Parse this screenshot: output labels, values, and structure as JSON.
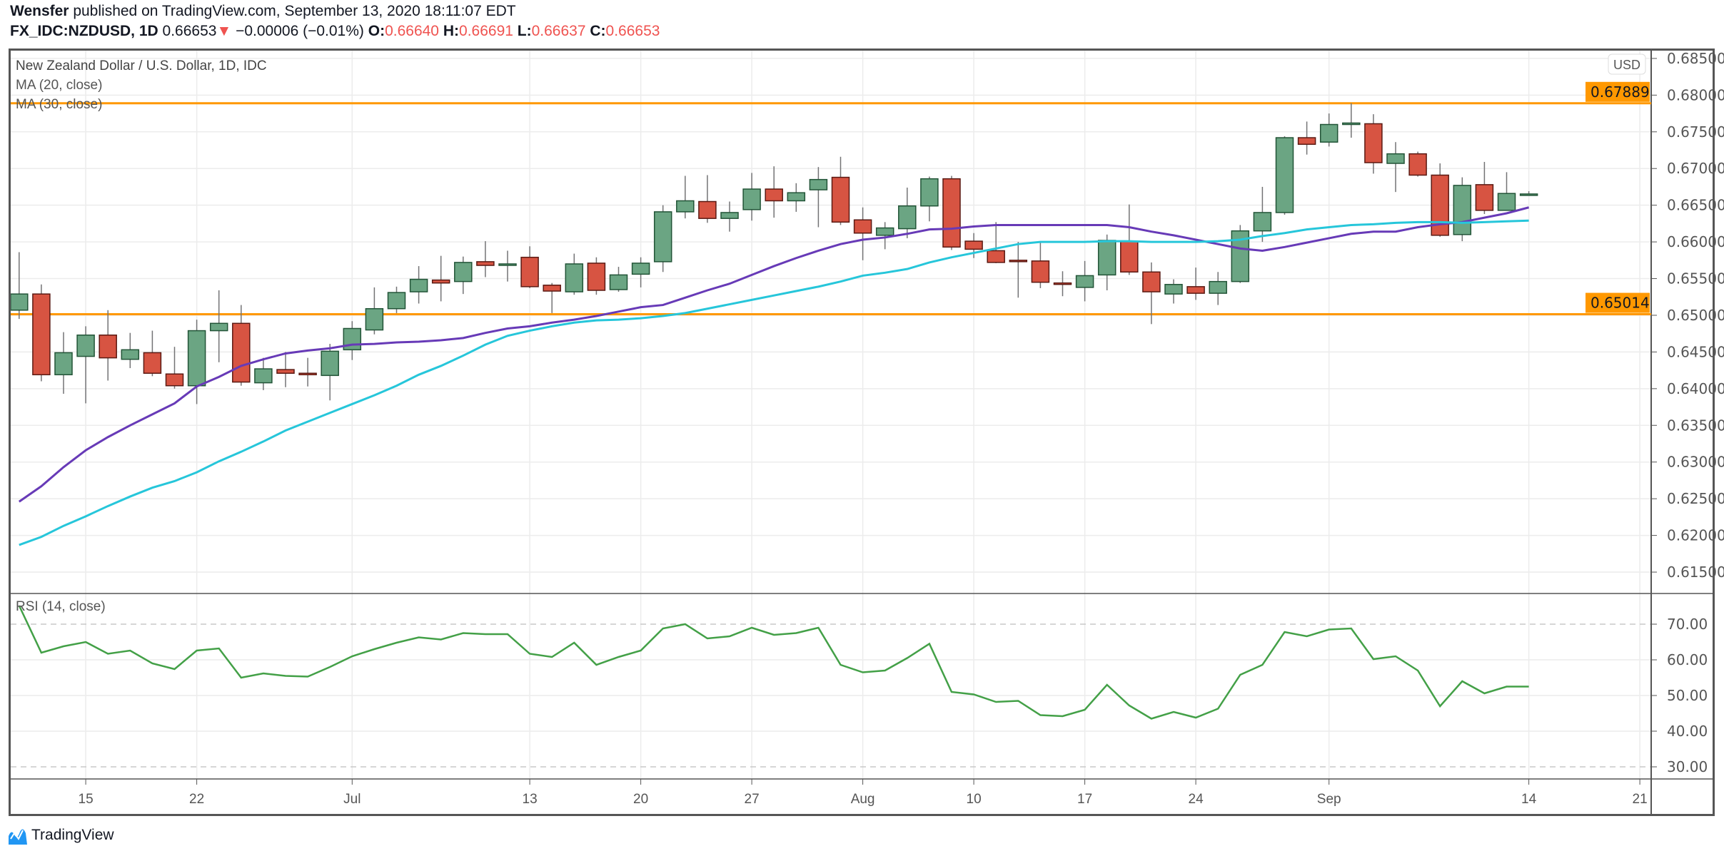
{
  "header": {
    "author": "Wensfer",
    "published": "published on TradingView.com, September 13, 2020 18:11:07 EDT",
    "symbol": "FX_IDC:NZDUSD, 1D",
    "last": "0.66653",
    "change": "−0.00006 (−0.01%)",
    "o_label": "O:",
    "o": "0.66640",
    "h_label": "H:",
    "h": "0.66691",
    "l_label": "L:",
    "l": "0.66637",
    "c_label": "C:",
    "c": "0.66653"
  },
  "legend": {
    "title": "New Zealand Dollar / U.S. Dollar, 1D, IDC",
    "ma20": "MA (20, close)",
    "ma30": "MA (30, close)",
    "rsi": "RSI (14, close)"
  },
  "currency_badge": "USD",
  "footer": {
    "brand": "TradingView"
  },
  "colors": {
    "up": "#6ba583",
    "up_border": "#225437",
    "down": "#d75442",
    "down_border": "#5b1a13",
    "ma20": "#673ab7",
    "ma30": "#26c6da",
    "levels": "#ff9800",
    "rsi": "#43a047"
  },
  "chart_data": [
    {
      "type": "candlestick",
      "title": "New Zealand Dollar / U.S. Dollar, 1D, IDC",
      "ylim": [
        0.6125,
        0.6855
      ],
      "y_ticks": [
        "0.61500",
        "0.62000",
        "0.62500",
        "0.63000",
        "0.63500",
        "0.64000",
        "0.64500",
        "0.65000",
        "0.65500",
        "0.66000",
        "0.66500",
        "0.67000",
        "0.67500",
        "0.68000",
        "0.68500"
      ],
      "x_ticks": [
        {
          "label": "15",
          "date": "2020-06-15"
        },
        {
          "label": "22",
          "date": "2020-06-22"
        },
        {
          "label": "Jul",
          "date": "2020-07-01"
        },
        {
          "label": "13",
          "date": "2020-07-13"
        },
        {
          "label": "20",
          "date": "2020-07-20"
        },
        {
          "label": "27",
          "date": "2020-07-27"
        },
        {
          "label": "Aug",
          "date": "2020-08-03"
        },
        {
          "label": "10",
          "date": "2020-08-10"
        },
        {
          "label": "17",
          "date": "2020-08-17"
        },
        {
          "label": "24",
          "date": "2020-08-24"
        },
        {
          "label": "Sep",
          "date": "2020-09-01"
        },
        {
          "label": "14",
          "date": "2020-09-14"
        },
        {
          "label": "21",
          "date": "2020-09-21"
        }
      ],
      "grid": true,
      "dates": [
        "2020-06-10",
        "2020-06-11",
        "2020-06-12",
        "2020-06-15",
        "2020-06-16",
        "2020-06-17",
        "2020-06-18",
        "2020-06-19",
        "2020-06-22",
        "2020-06-23",
        "2020-06-24",
        "2020-06-25",
        "2020-06-26",
        "2020-06-29",
        "2020-06-30",
        "2020-07-01",
        "2020-07-02",
        "2020-07-03",
        "2020-07-06",
        "2020-07-07",
        "2020-07-08",
        "2020-07-09",
        "2020-07-10",
        "2020-07-13",
        "2020-07-14",
        "2020-07-15",
        "2020-07-16",
        "2020-07-17",
        "2020-07-20",
        "2020-07-21",
        "2020-07-22",
        "2020-07-23",
        "2020-07-24",
        "2020-07-27",
        "2020-07-28",
        "2020-07-29",
        "2020-07-30",
        "2020-07-31",
        "2020-08-03",
        "2020-08-04",
        "2020-08-05",
        "2020-08-06",
        "2020-08-07",
        "2020-08-10",
        "2020-08-11",
        "2020-08-12",
        "2020-08-13",
        "2020-08-14",
        "2020-08-17",
        "2020-08-18",
        "2020-08-19",
        "2020-08-20",
        "2020-08-21",
        "2020-08-24",
        "2020-08-25",
        "2020-08-26",
        "2020-08-27",
        "2020-08-28",
        "2020-08-31",
        "2020-09-01",
        "2020-09-02",
        "2020-09-03",
        "2020-09-04",
        "2020-09-07",
        "2020-09-08",
        "2020-09-09",
        "2020-09-10",
        "2020-09-11",
        "2020-09-14"
      ],
      "ohlc": [
        [
          0.6507,
          0.6586,
          0.6495,
          0.6529
        ],
        [
          0.6529,
          0.6542,
          0.641,
          0.6419
        ],
        [
          0.6419,
          0.6477,
          0.6393,
          0.6449
        ],
        [
          0.6444,
          0.6485,
          0.638,
          0.6473
        ],
        [
          0.6473,
          0.6507,
          0.6411,
          0.6442
        ],
        [
          0.644,
          0.6476,
          0.6428,
          0.6453
        ],
        [
          0.6449,
          0.6479,
          0.6417,
          0.6421
        ],
        [
          0.642,
          0.6457,
          0.64,
          0.6404
        ],
        [
          0.6404,
          0.6494,
          0.6379,
          0.6479
        ],
        [
          0.6479,
          0.6534,
          0.6436,
          0.6489
        ],
        [
          0.6489,
          0.6514,
          0.6404,
          0.6409
        ],
        [
          0.6408,
          0.6442,
          0.6398,
          0.6427
        ],
        [
          0.6426,
          0.645,
          0.6402,
          0.6421
        ],
        [
          0.6421,
          0.6442,
          0.6403,
          0.6419
        ],
        [
          0.6418,
          0.6461,
          0.6384,
          0.6451
        ],
        [
          0.6453,
          0.6492,
          0.6439,
          0.6482
        ],
        [
          0.648,
          0.6538,
          0.6474,
          0.6509
        ],
        [
          0.6509,
          0.6539,
          0.6503,
          0.6531
        ],
        [
          0.6532,
          0.6567,
          0.6516,
          0.6549
        ],
        [
          0.6548,
          0.6581,
          0.6519,
          0.6544
        ],
        [
          0.6546,
          0.658,
          0.6529,
          0.6572
        ],
        [
          0.6573,
          0.6601,
          0.6552,
          0.6568
        ],
        [
          0.6568,
          0.6588,
          0.6546,
          0.657
        ],
        [
          0.6579,
          0.6594,
          0.6537,
          0.6539
        ],
        [
          0.6541,
          0.6544,
          0.6503,
          0.6533
        ],
        [
          0.6532,
          0.6584,
          0.6528,
          0.657
        ],
        [
          0.6571,
          0.6579,
          0.6528,
          0.6534
        ],
        [
          0.6535,
          0.6566,
          0.6532,
          0.6555
        ],
        [
          0.6556,
          0.6579,
          0.6538,
          0.6571
        ],
        [
          0.6573,
          0.665,
          0.6559,
          0.6641
        ],
        [
          0.6641,
          0.669,
          0.6632,
          0.6656
        ],
        [
          0.6655,
          0.6691,
          0.6626,
          0.6632
        ],
        [
          0.6632,
          0.6655,
          0.6614,
          0.664
        ],
        [
          0.6644,
          0.6694,
          0.6629,
          0.6672
        ],
        [
          0.6672,
          0.6703,
          0.6633,
          0.6656
        ],
        [
          0.6656,
          0.668,
          0.6641,
          0.6667
        ],
        [
          0.6671,
          0.6702,
          0.662,
          0.6685
        ],
        [
          0.6688,
          0.6716,
          0.6623,
          0.6627
        ],
        [
          0.663,
          0.6647,
          0.6575,
          0.6612
        ],
        [
          0.6609,
          0.6627,
          0.659,
          0.6619
        ],
        [
          0.6618,
          0.6674,
          0.6605,
          0.6649
        ],
        [
          0.6649,
          0.6689,
          0.6628,
          0.6686
        ],
        [
          0.6686,
          0.669,
          0.6589,
          0.6593
        ],
        [
          0.6601,
          0.6612,
          0.6578,
          0.659
        ],
        [
          0.6588,
          0.6627,
          0.6571,
          0.6572
        ],
        [
          0.6575,
          0.66,
          0.6524,
          0.6574
        ],
        [
          0.6574,
          0.6599,
          0.6537,
          0.6545
        ],
        [
          0.6544,
          0.656,
          0.6526,
          0.6543
        ],
        [
          0.6538,
          0.6574,
          0.6519,
          0.6554
        ],
        [
          0.6555,
          0.661,
          0.6534,
          0.6602
        ],
        [
          0.6601,
          0.6651,
          0.6555,
          0.6559
        ],
        [
          0.6559,
          0.6572,
          0.6488,
          0.6532
        ],
        [
          0.6529,
          0.6549,
          0.6516,
          0.6542
        ],
        [
          0.6539,
          0.6565,
          0.6521,
          0.653
        ],
        [
          0.653,
          0.6559,
          0.6514,
          0.6546
        ],
        [
          0.6546,
          0.6623,
          0.6544,
          0.6615
        ],
        [
          0.6615,
          0.6675,
          0.66,
          0.664
        ],
        [
          0.664,
          0.6744,
          0.6637,
          0.6742
        ],
        [
          0.6742,
          0.6764,
          0.6719,
          0.6733
        ],
        [
          0.6736,
          0.6775,
          0.673,
          0.676
        ],
        [
          0.676,
          0.6789,
          0.6742,
          0.6762
        ],
        [
          0.6761,
          0.6774,
          0.6693,
          0.6708
        ],
        [
          0.6707,
          0.6736,
          0.6668,
          0.672
        ],
        [
          0.672,
          0.6723,
          0.6689,
          0.6691
        ],
        [
          0.6691,
          0.6707,
          0.6607,
          0.6609
        ],
        [
          0.661,
          0.6688,
          0.6601,
          0.6677
        ],
        [
          0.6678,
          0.6709,
          0.6638,
          0.6643
        ],
        [
          0.6643,
          0.6695,
          0.6643,
          0.6666
        ],
        [
          0.6664,
          0.66691,
          0.66637,
          0.66653
        ]
      ],
      "series": [
        {
          "name": "MA (20, close)",
          "values": [
            0.6246,
            0.6267,
            0.6293,
            0.6316,
            0.6334,
            0.635,
            0.6365,
            0.638,
            0.6403,
            0.6416,
            0.6431,
            0.644,
            0.6448,
            0.6452,
            0.6455,
            0.646,
            0.6461,
            0.6463,
            0.6464,
            0.6466,
            0.6469,
            0.6476,
            0.6482,
            0.6485,
            0.649,
            0.6494,
            0.6499,
            0.6505,
            0.6511,
            0.6514,
            0.6524,
            0.6534,
            0.6543,
            0.6555,
            0.6567,
            0.6578,
            0.6588,
            0.6597,
            0.6603,
            0.6606,
            0.6611,
            0.6617,
            0.6618,
            0.6621,
            0.6623,
            0.6623,
            0.6623,
            0.6623,
            0.6623,
            0.6623,
            0.662,
            0.6614,
            0.6609,
            0.6603,
            0.6597,
            0.6591,
            0.6588,
            0.6593,
            0.6599,
            0.6605,
            0.6611,
            0.6614,
            0.6614,
            0.662,
            0.6624,
            0.6627,
            0.6633,
            0.6639,
            0.6647
          ]
        },
        {
          "name": "MA (30, close)",
          "values": [
            0.6187,
            0.6198,
            0.6213,
            0.6226,
            0.624,
            0.6253,
            0.6265,
            0.6274,
            0.6286,
            0.6301,
            0.6314,
            0.6328,
            0.6343,
            0.6355,
            0.6367,
            0.6379,
            0.6391,
            0.6404,
            0.6419,
            0.6431,
            0.6445,
            0.646,
            0.6472,
            0.6479,
            0.6485,
            0.649,
            0.6493,
            0.6494,
            0.6496,
            0.6499,
            0.6503,
            0.6509,
            0.6515,
            0.6521,
            0.6527,
            0.6533,
            0.6539,
            0.6546,
            0.6554,
            0.6558,
            0.6563,
            0.6572,
            0.6579,
            0.6585,
            0.6591,
            0.6597,
            0.66,
            0.66,
            0.66,
            0.6601,
            0.6601,
            0.66,
            0.66,
            0.66,
            0.6601,
            0.6603,
            0.6608,
            0.6612,
            0.6617,
            0.662,
            0.6623,
            0.6624,
            0.6626,
            0.6627,
            0.6627,
            0.6626,
            0.6627,
            0.6628,
            0.6629
          ]
        }
      ],
      "levels": [
        {
          "label": "0.67889",
          "value": 0.67889
        },
        {
          "label": "0.65014",
          "value": 0.65014
        }
      ]
    },
    {
      "type": "line",
      "title": "RSI (14, close)",
      "ylim": [
        27,
        75
      ],
      "y_ticks": [
        "30.00",
        "40.00",
        "50.00",
        "60.00",
        "70.00"
      ],
      "bands": [
        70,
        30
      ],
      "series": [
        {
          "name": "RSI (14, close)",
          "values": [
            75.2,
            62,
            63.8,
            65,
            61.7,
            62.6,
            59,
            57.4,
            62.6,
            63.2,
            55,
            56.2,
            55.5,
            55.3,
            58,
            61,
            63,
            64.8,
            66.3,
            65.7,
            67.5,
            67.2,
            67.2,
            61.7,
            60.8,
            64.8,
            58.6,
            60.8,
            62.6,
            68.8,
            70,
            66,
            66.6,
            69,
            67,
            67.5,
            69,
            58.6,
            56.5,
            57,
            60.5,
            64.5,
            51,
            50.3,
            48.2,
            48.5,
            44.5,
            44.2,
            46,
            53,
            47.2,
            43.5,
            45.4,
            43.8,
            46.3,
            55.8,
            58.6,
            67.8,
            66.6,
            68.5,
            68.8,
            60.2,
            61,
            57,
            47,
            54,
            50.6,
            52.5,
            52.5
          ]
        }
      ]
    }
  ]
}
